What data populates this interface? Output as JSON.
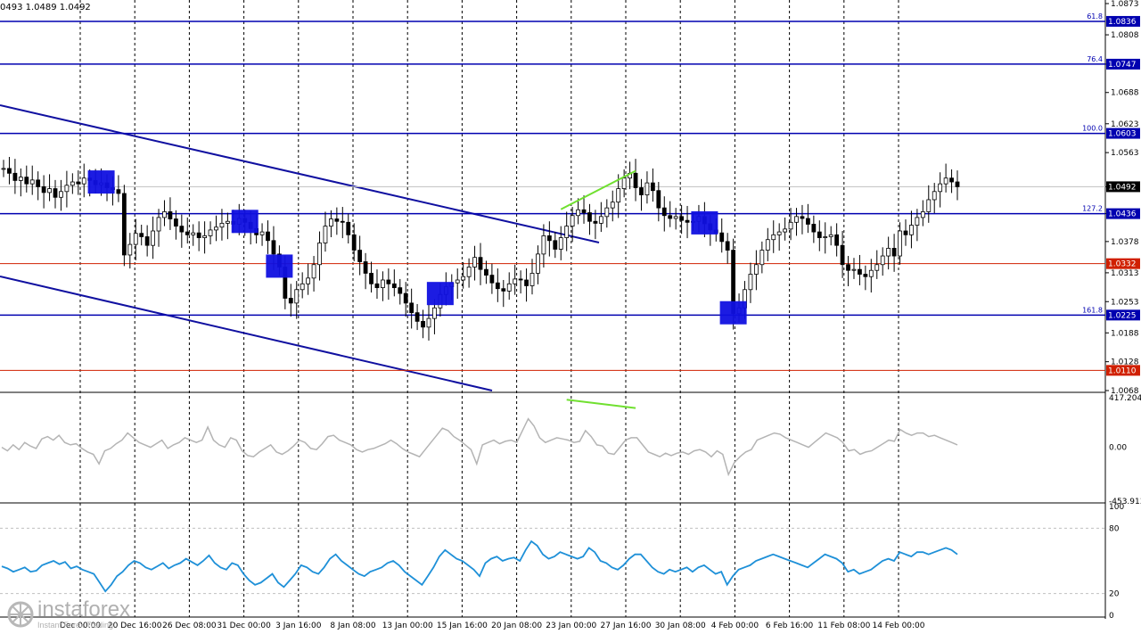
{
  "header": {
    "ohlc_text": "0493 1.0489 1.0492"
  },
  "brand": {
    "name": "instaforex",
    "tagline": "Instant Forex Trading"
  },
  "chart_data": [
    {
      "type": "candlestick",
      "title": "",
      "ylim": [
        1.0068,
        1.0873
      ],
      "price_ticks": [
        "1.0873",
        "1.0808",
        "1.0747",
        "1.0688",
        "1.0623",
        "1.0563",
        "1.0492",
        "1.0436",
        "1.0378",
        "1.0313",
        "1.0253",
        "1.0188",
        "1.0128",
        "1.0068"
      ],
      "x_labels": [
        "Dec 00:00",
        "20 Dec 16:00",
        "26 Dec 08:00",
        "31 Dec 00:00",
        "3 Jan 16:00",
        "8 Jan 08:00",
        "13 Jan 00:00",
        "15 Jan 16:00",
        "20 Jan 08:00",
        "23 Jan 00:00",
        "27 Jan 16:00",
        "30 Jan 08:00",
        "4 Feb 00:00",
        "6 Feb 16:00",
        "11 Feb 08:00",
        "14 Feb 00:00"
      ],
      "current_price": {
        "value": 1.0492,
        "label": "1.0492"
      },
      "levels": [
        {
          "fib": "61.8",
          "value": 1.0836,
          "label": "1.0836",
          "color": "#0000b0"
        },
        {
          "fib": "76.4",
          "value": 1.0747,
          "label": "1.0747",
          "color": "#0000b0"
        },
        {
          "fib": "100.0",
          "value": 1.0603,
          "label": "1.0603",
          "color": "#0000b0"
        },
        {
          "fib": "127.2",
          "value": 1.0436,
          "label": "1.0436",
          "color": "#0000b0"
        },
        {
          "fib": "",
          "value": 1.0332,
          "label": "1.0332",
          "color": "#d02000"
        },
        {
          "fib": "161.8",
          "value": 1.0225,
          "label": "1.0225",
          "color": "#0000b0"
        },
        {
          "fib": "",
          "value": 1.011,
          "label": "1.0110",
          "color": "#d02000"
        }
      ],
      "candles_close": [
        1.053,
        1.052,
        1.0505,
        1.0512,
        1.0498,
        1.0506,
        1.0492,
        1.048,
        1.0488,
        1.047,
        1.0482,
        1.0495,
        1.0502,
        1.0498,
        1.051,
        1.0505,
        1.0496,
        1.05,
        1.049,
        1.0486,
        1.0478,
        1.035,
        1.0372,
        1.0395,
        1.0388,
        1.037,
        1.04,
        1.0428,
        1.044,
        1.0425,
        1.041,
        1.0398,
        1.0392,
        1.0396,
        1.0386,
        1.039,
        1.0402,
        1.0408,
        1.0416,
        1.042,
        1.0414,
        1.0426,
        1.0418,
        1.0405,
        1.0392,
        1.0398,
        1.038,
        1.0352,
        1.0325,
        1.026,
        1.025,
        1.0278,
        1.029,
        1.0302,
        1.033,
        1.0375,
        1.041,
        1.0425,
        1.042,
        1.0418,
        1.0392,
        1.036,
        1.0336,
        1.0312,
        1.029,
        1.0282,
        1.0298,
        1.029,
        1.0282,
        1.027,
        1.025,
        1.023,
        1.0212,
        1.02,
        1.0218,
        1.024,
        1.0268,
        1.0284,
        1.0292,
        1.0298,
        1.0305,
        1.0325,
        1.0345,
        1.032,
        1.0308,
        1.0292,
        1.028,
        1.0275,
        1.029,
        1.03,
        1.0298,
        1.0286,
        1.0312,
        1.0352,
        1.039,
        1.038,
        1.0362,
        1.0386,
        1.041,
        1.0432,
        1.0444,
        1.0438,
        1.042,
        1.0416,
        1.043,
        1.0448,
        1.046,
        1.0488,
        1.051,
        1.052,
        1.049,
        1.0475,
        1.05,
        1.0484,
        1.0448,
        1.0432,
        1.0426,
        1.043,
        1.0422,
        1.0418,
        1.042,
        1.043,
        1.0415,
        1.0402,
        1.0396,
        1.0378,
        1.036,
        1.0228,
        1.024,
        1.0278,
        1.031,
        1.033,
        1.036,
        1.0382,
        1.0392,
        1.0398,
        1.0404,
        1.0418,
        1.043,
        1.0426,
        1.0414,
        1.0398,
        1.0386,
        1.0388,
        1.0392,
        1.037,
        1.033,
        1.0318,
        1.032,
        1.031,
        1.0305,
        1.0318,
        1.033,
        1.0348,
        1.0364,
        1.0348,
        1.04,
        1.0392,
        1.0412,
        1.0428,
        1.044,
        1.0465,
        1.0482,
        1.0498,
        1.051,
        1.0502,
        1.0492
      ],
      "annotations": [
        {
          "kind": "signal-box",
          "candle": 17
        },
        {
          "kind": "signal-box",
          "candle": 42
        },
        {
          "kind": "signal-box",
          "candle": 48
        },
        {
          "kind": "signal-box",
          "candle": 76
        },
        {
          "kind": "signal-box",
          "candle": 122
        },
        {
          "kind": "signal-box",
          "candle": 127
        }
      ]
    },
    {
      "type": "line",
      "title": "",
      "ylim": [
        -453.913,
        417.2044
      ],
      "ticks": [
        "417.2044",
        "0.00",
        "-453.913"
      ],
      "values": [
        0,
        -30,
        20,
        -20,
        40,
        10,
        -10,
        70,
        90,
        60,
        100,
        40,
        20,
        30,
        -10,
        -40,
        -60,
        -140,
        -30,
        -10,
        30,
        60,
        120,
        80,
        40,
        20,
        0,
        30,
        60,
        -10,
        20,
        40,
        80,
        60,
        40,
        60,
        170,
        60,
        20,
        0,
        80,
        60,
        -30,
        -70,
        -80,
        -40,
        -10,
        20,
        -40,
        -60,
        -30,
        10,
        60,
        40,
        -10,
        -20,
        30,
        90,
        100,
        60,
        40,
        20,
        -20,
        -40,
        -20,
        -10,
        10,
        30,
        60,
        30,
        -10,
        -40,
        -60,
        -80,
        -20,
        40,
        100,
        160,
        140,
        90,
        60,
        20,
        -20,
        -140,
        20,
        40,
        60,
        30,
        50,
        60,
        40,
        140,
        240,
        180,
        80,
        40,
        60,
        80,
        70,
        60,
        40,
        50,
        140,
        90,
        20,
        10,
        -50,
        -60,
        0,
        60,
        80,
        80,
        20,
        -40,
        -60,
        -80,
        -50,
        -70,
        -50,
        -40,
        -60,
        -30,
        -20,
        -40,
        -80,
        -30,
        -60,
        -230,
        -130,
        -80,
        -40,
        -20,
        60,
        80,
        100,
        120,
        110,
        80,
        60,
        40,
        20,
        0,
        40,
        80,
        120,
        100,
        80,
        40,
        -30,
        -20,
        -60,
        -40,
        -30,
        0,
        30,
        60,
        50,
        150,
        120,
        100,
        120,
        120,
        90,
        100,
        80,
        60,
        40,
        20
      ],
      "divergence": true
    },
    {
      "type": "line",
      "title": "",
      "ylim": [
        0,
        100
      ],
      "ticks": [
        "100",
        "80",
        "20",
        "0"
      ],
      "levels": [
        80,
        20
      ],
      "values": [
        45,
        43,
        40,
        42,
        44,
        40,
        41,
        46,
        48,
        50,
        47,
        49,
        43,
        45,
        42,
        40,
        38,
        30,
        22,
        28,
        36,
        40,
        46,
        50,
        48,
        44,
        42,
        45,
        48,
        43,
        46,
        48,
        52,
        49,
        46,
        50,
        55,
        48,
        44,
        42,
        48,
        46,
        38,
        32,
        28,
        30,
        34,
        38,
        30,
        26,
        32,
        38,
        46,
        44,
        40,
        38,
        44,
        52,
        56,
        50,
        46,
        42,
        38,
        36,
        40,
        42,
        44,
        48,
        50,
        46,
        40,
        36,
        32,
        28,
        36,
        44,
        54,
        60,
        56,
        52,
        50,
        46,
        42,
        36,
        48,
        52,
        54,
        50,
        52,
        53,
        50,
        60,
        68,
        64,
        56,
        52,
        54,
        58,
        56,
        54,
        52,
        54,
        62,
        58,
        50,
        48,
        44,
        42,
        46,
        52,
        56,
        56,
        50,
        44,
        40,
        38,
        42,
        40,
        42,
        44,
        40,
        44,
        46,
        42,
        38,
        40,
        28,
        36,
        42,
        44,
        46,
        50,
        52,
        54,
        56,
        54,
        52,
        50,
        48,
        46,
        44,
        48,
        52,
        56,
        54,
        52,
        48,
        40,
        42,
        38,
        40,
        42,
        46,
        50,
        52,
        50,
        58,
        56,
        54,
        58,
        58,
        56,
        58,
        60,
        62,
        60,
        56
      ]
    }
  ]
}
